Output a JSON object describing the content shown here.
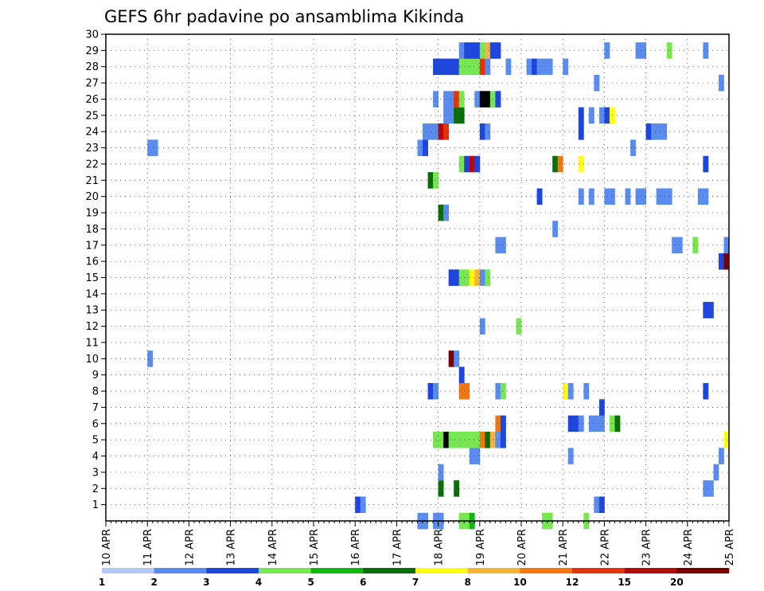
{
  "chart_data": {
    "type": "heatmap",
    "title": "GEFS 6hr padavine po ansamblima Kikinda",
    "xlabel": "",
    "ylabel": "",
    "x_tick_labels": [
      "10 APR",
      "11 APR",
      "12 APR",
      "13 APR",
      "14 APR",
      "15 APR",
      "16 APR",
      "17 APR",
      "18 APR",
      "19 APR",
      "20 APR",
      "21 APR",
      "22 APR",
      "23 APR",
      "24 APR",
      "25 APR"
    ],
    "y_tick_labels": [
      "1",
      "2",
      "3",
      "4",
      "5",
      "6",
      "7",
      "8",
      "9",
      "10",
      "11",
      "12",
      "13",
      "14",
      "15",
      "16",
      "17",
      "18",
      "19",
      "20",
      "21",
      "22",
      "23",
      "24",
      "25",
      "26",
      "27",
      "28",
      "29",
      "30"
    ],
    "step_hours": 6,
    "x_start": "10 APR 00Z",
    "grid": true,
    "colorbar": {
      "position": "bottom",
      "labels": [
        "1",
        "2",
        "3",
        "4",
        "5",
        "6",
        "7",
        "8",
        "10",
        "12",
        "15",
        "20"
      ],
      "colors": [
        "#b4c8f5",
        "#5a8cf0",
        "#1e46dc",
        "#78e650",
        "#14b414",
        "#0a6e0a",
        "#ffff14",
        "#f5b43c",
        "#f07814",
        "#e6320a",
        "#b40a0a",
        "#780000"
      ]
    },
    "members": [
      {
        "member": 0,
        "cells": [
          [
            60,
            1
          ],
          [
            61,
            1
          ],
          [
            63,
            1
          ],
          [
            64,
            1
          ],
          [
            68,
            3
          ],
          [
            69,
            3
          ],
          [
            70,
            4
          ],
          [
            84,
            3
          ],
          [
            85,
            3
          ],
          [
            92,
            3
          ]
        ]
      },
      {
        "member": 1,
        "cells": [
          [
            48,
            2
          ],
          [
            49,
            1
          ],
          [
            94,
            1
          ],
          [
            95,
            2
          ]
        ]
      },
      {
        "member": 2,
        "cells": [
          [
            64,
            5
          ],
          [
            67,
            5
          ],
          [
            115,
            1
          ],
          [
            116,
            1
          ]
        ]
      },
      {
        "member": 3,
        "cells": [
          [
            64,
            1
          ],
          [
            117,
            1
          ]
        ]
      },
      {
        "member": 4,
        "cells": [
          [
            70,
            1
          ],
          [
            71,
            1
          ],
          [
            89,
            1
          ],
          [
            118,
            1
          ]
        ]
      },
      {
        "member": 5,
        "cells": [
          [
            63,
            3
          ],
          [
            64,
            3
          ],
          [
            65,
            12
          ],
          [
            66,
            3
          ],
          [
            67,
            3
          ],
          [
            68,
            3
          ],
          [
            69,
            3
          ],
          [
            70,
            3
          ],
          [
            71,
            3
          ],
          [
            72,
            8
          ],
          [
            73,
            5
          ],
          [
            74,
            7
          ],
          [
            75,
            1
          ],
          [
            76,
            2
          ],
          [
            119,
            6
          ]
        ]
      },
      {
        "member": 6,
        "cells": [
          [
            75,
            8
          ],
          [
            76,
            2
          ],
          [
            89,
            2
          ],
          [
            90,
            2
          ],
          [
            91,
            1
          ],
          [
            93,
            1
          ],
          [
            94,
            1
          ],
          [
            95,
            1
          ],
          [
            97,
            3
          ],
          [
            98,
            5
          ]
        ]
      },
      {
        "member": 7,
        "cells": [
          [
            95,
            2
          ]
        ]
      },
      {
        "member": 8,
        "cells": [
          [
            62,
            2
          ],
          [
            63,
            1
          ],
          [
            68,
            8
          ],
          [
            69,
            8
          ],
          [
            75,
            1
          ],
          [
            76,
            3
          ],
          [
            88,
            6
          ],
          [
            89,
            1
          ],
          [
            92,
            1
          ],
          [
            115,
            2
          ]
        ]
      },
      {
        "member": 9,
        "cells": [
          [
            68,
            2
          ]
        ]
      },
      {
        "member": 10,
        "cells": [
          [
            8,
            1
          ],
          [
            66,
            11
          ],
          [
            67,
            1
          ]
        ]
      },
      {
        "member": 12,
        "cells": [
          [
            72,
            1
          ],
          [
            79,
            3
          ]
        ]
      },
      {
        "member": 13,
        "cells": [
          [
            115,
            2
          ],
          [
            116,
            2
          ]
        ]
      },
      {
        "member": 15,
        "cells": [
          [
            66,
            2
          ],
          [
            67,
            2
          ],
          [
            68,
            3
          ],
          [
            69,
            3
          ],
          [
            70,
            6
          ],
          [
            71,
            7
          ],
          [
            72,
            1
          ],
          [
            73,
            3
          ]
        ]
      },
      {
        "member": 16,
        "cells": [
          [
            118,
            2
          ],
          [
            119,
            11
          ]
        ]
      },
      {
        "member": 17,
        "cells": [
          [
            75,
            1
          ],
          [
            76,
            1
          ],
          [
            109,
            1
          ],
          [
            110,
            1
          ],
          [
            113,
            3
          ],
          [
            119,
            1
          ]
        ]
      },
      {
        "member": 18,
        "cells": [
          [
            86,
            1
          ]
        ]
      },
      {
        "member": 19,
        "cells": [
          [
            64,
            5
          ],
          [
            65,
            1
          ]
        ]
      },
      {
        "member": 20,
        "cells": [
          [
            83,
            2
          ],
          [
            91,
            1
          ],
          [
            93,
            1
          ],
          [
            96,
            1
          ],
          [
            97,
            1
          ],
          [
            100,
            1
          ],
          [
            102,
            1
          ],
          [
            103,
            1
          ],
          [
            106,
            1
          ],
          [
            107,
            1
          ],
          [
            108,
            1
          ],
          [
            114,
            1
          ],
          [
            115,
            1
          ]
        ]
      },
      {
        "member": 21,
        "cells": [
          [
            62,
            5
          ],
          [
            63,
            3
          ]
        ]
      },
      {
        "member": 22,
        "cells": [
          [
            68,
            3
          ],
          [
            69,
            2
          ],
          [
            70,
            10
          ],
          [
            71,
            2
          ],
          [
            86,
            5
          ],
          [
            87,
            8
          ],
          [
            91,
            6
          ],
          [
            115,
            2
          ]
        ]
      },
      {
        "member": 23,
        "cells": [
          [
            8,
            1
          ],
          [
            9,
            1
          ],
          [
            60,
            1
          ],
          [
            61,
            2
          ],
          [
            101,
            1
          ]
        ]
      },
      {
        "member": 24,
        "cells": [
          [
            61,
            1
          ],
          [
            62,
            1
          ],
          [
            63,
            1
          ],
          [
            64,
            10
          ],
          [
            65,
            9
          ],
          [
            72,
            2
          ],
          [
            73,
            1
          ],
          [
            91,
            2
          ],
          [
            104,
            2
          ],
          [
            105,
            1
          ],
          [
            106,
            1
          ],
          [
            107,
            1
          ]
        ]
      },
      {
        "member": 25,
        "cells": [
          [
            65,
            1
          ],
          [
            66,
            1
          ],
          [
            67,
            5
          ],
          [
            68,
            5
          ],
          [
            91,
            2
          ],
          [
            93,
            1
          ],
          [
            95,
            1
          ],
          [
            96,
            2
          ],
          [
            97,
            6
          ]
        ]
      },
      {
        "member": 26,
        "cells": [
          [
            63,
            1
          ],
          [
            65,
            1
          ],
          [
            66,
            1
          ],
          [
            67,
            9
          ],
          [
            68,
            3
          ],
          [
            71,
            1
          ],
          [
            72,
            15
          ],
          [
            73,
            12
          ],
          [
            74,
            3
          ],
          [
            75,
            2
          ]
        ]
      },
      {
        "member": 27,
        "cells": [
          [
            94,
            1
          ],
          [
            118,
            1
          ]
        ]
      },
      {
        "member": 28,
        "cells": [
          [
            63,
            2
          ],
          [
            64,
            2
          ],
          [
            65,
            2
          ],
          [
            66,
            2
          ],
          [
            67,
            2
          ],
          [
            68,
            3
          ],
          [
            69,
            3
          ],
          [
            70,
            3
          ],
          [
            71,
            3
          ],
          [
            72,
            9
          ],
          [
            73,
            1
          ],
          [
            77,
            1
          ],
          [
            81,
            1
          ],
          [
            82,
            2
          ],
          [
            83,
            1
          ],
          [
            84,
            1
          ],
          [
            85,
            1
          ],
          [
            88,
            1
          ]
        ]
      },
      {
        "member": 29,
        "cells": [
          [
            68,
            1
          ],
          [
            69,
            2
          ],
          [
            70,
            2
          ],
          [
            71,
            2
          ],
          [
            72,
            3
          ],
          [
            73,
            7
          ],
          [
            74,
            2
          ],
          [
            75,
            2
          ],
          [
            96,
            1
          ],
          [
            102,
            1
          ],
          [
            103,
            1
          ],
          [
            108,
            3
          ],
          [
            115,
            1
          ]
        ]
      }
    ]
  }
}
